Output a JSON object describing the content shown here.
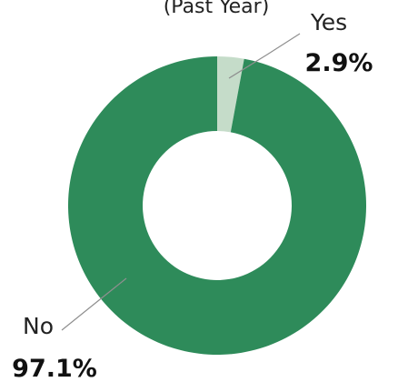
{
  "chart_data": {
    "type": "pie",
    "variant": "donut",
    "title": "(Past Year)",
    "categories": [
      "Yes",
      "No"
    ],
    "values": [
      2.9,
      97.1
    ],
    "value_labels": [
      "2.9%",
      "97.1%"
    ],
    "colors": [
      "#c5dcc9",
      "#2e8b5a"
    ],
    "legend": "none"
  }
}
